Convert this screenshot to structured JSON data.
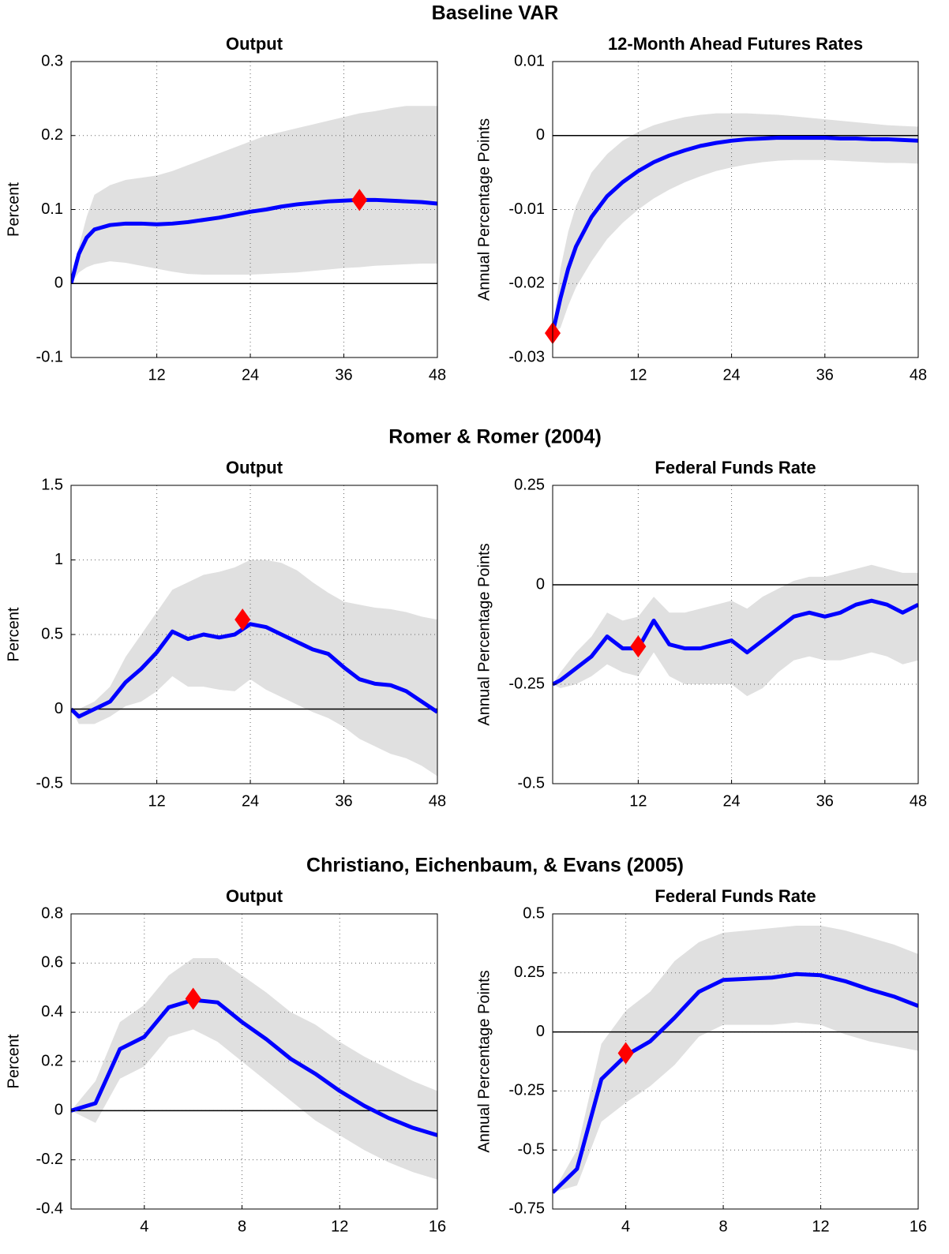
{
  "sections": [
    "Baseline VAR",
    "Romer & Romer (2004)",
    "Christiano, Eichenbaum, & Evans (2005)"
  ],
  "chart_data": [
    {
      "type": "line",
      "title": "Output",
      "ylabel": "Percent",
      "xlim": [
        1,
        48
      ],
      "ylim": [
        -0.1,
        0.3
      ],
      "xticks": [
        12,
        24,
        36,
        48
      ],
      "yticks": [
        0.3,
        0.2,
        0.1,
        0,
        -0.1
      ],
      "grid": true,
      "hline": 0,
      "x": [
        1,
        2,
        3,
        4,
        6,
        8,
        10,
        12,
        14,
        16,
        18,
        20,
        22,
        24,
        26,
        28,
        30,
        32,
        34,
        36,
        38,
        40,
        42,
        44,
        46,
        48
      ],
      "line": {
        "color": "#0000ff",
        "values": [
          0,
          0.04,
          0.062,
          0.073,
          0.079,
          0.081,
          0.081,
          0.08,
          0.081,
          0.083,
          0.086,
          0.089,
          0.093,
          0.097,
          0.1,
          0.104,
          0.107,
          0.109,
          0.111,
          0.112,
          0.113,
          0.113,
          0.112,
          0.111,
          0.11,
          0.108
        ]
      },
      "band": {
        "color": "#e0e0e0",
        "upper": [
          0,
          0.05,
          0.09,
          0.12,
          0.133,
          0.14,
          0.143,
          0.146,
          0.152,
          0.16,
          0.168,
          0.176,
          0.184,
          0.192,
          0.2,
          0.205,
          0.21,
          0.215,
          0.22,
          0.225,
          0.23,
          0.233,
          0.237,
          0.24,
          0.24,
          0.24
        ],
        "lower": [
          0,
          0.015,
          0.022,
          0.026,
          0.03,
          0.028,
          0.024,
          0.02,
          0.016,
          0.013,
          0.012,
          0.012,
          0.012,
          0.012,
          0.013,
          0.014,
          0.015,
          0.017,
          0.019,
          0.021,
          0.022,
          0.024,
          0.025,
          0.026,
          0.027,
          0.027
        ]
      },
      "marker": {
        "color": "#ff0000",
        "x": 38,
        "y": 0.113
      }
    },
    {
      "type": "line",
      "title": "12-Month Ahead Futures Rates",
      "ylabel": "Annual Percentage Points",
      "xlim": [
        1,
        48
      ],
      "ylim": [
        -0.03,
        0.01
      ],
      "xticks": [
        12,
        24,
        36,
        48
      ],
      "yticks": [
        0.01,
        0,
        -0.01,
        -0.02,
        -0.03
      ],
      "grid": true,
      "hline": 0,
      "x": [
        1,
        2,
        3,
        4,
        6,
        8,
        10,
        12,
        14,
        16,
        18,
        20,
        22,
        24,
        26,
        28,
        30,
        32,
        34,
        36,
        38,
        40,
        42,
        44,
        46,
        48
      ],
      "line": {
        "color": "#0000ff",
        "values": [
          -0.0267,
          -0.022,
          -0.018,
          -0.015,
          -0.011,
          -0.0082,
          -0.0063,
          -0.0048,
          -0.0036,
          -0.0027,
          -0.002,
          -0.0014,
          -0.001,
          -0.0007,
          -0.0005,
          -0.0004,
          -0.0003,
          -0.0003,
          -0.0003,
          -0.0003,
          -0.0004,
          -0.0004,
          -0.0005,
          -0.0005,
          -0.0006,
          -0.0007
        ]
      },
      "band": {
        "color": "#e0e0e0",
        "upper": [
          -0.0267,
          -0.018,
          -0.013,
          -0.0095,
          -0.005,
          -0.0025,
          -0.0007,
          0.0005,
          0.0014,
          0.002,
          0.0025,
          0.0028,
          0.003,
          0.003,
          0.003,
          0.0029,
          0.0028,
          0.0026,
          0.0024,
          0.0022,
          0.002,
          0.0018,
          0.0016,
          0.0014,
          0.0013,
          0.0012
        ],
        "lower": [
          -0.0267,
          -0.026,
          -0.023,
          -0.0205,
          -0.017,
          -0.014,
          -0.0118,
          -0.01,
          -0.0085,
          -0.0073,
          -0.0063,
          -0.0055,
          -0.0048,
          -0.0043,
          -0.0039,
          -0.0036,
          -0.0034,
          -0.0033,
          -0.0033,
          -0.0033,
          -0.0034,
          -0.0035,
          -0.0036,
          -0.0037,
          -0.0037,
          -0.0038
        ]
      },
      "marker": {
        "color": "#ff0000",
        "x": 1,
        "y": -0.0267
      }
    },
    {
      "type": "line",
      "title": "Output",
      "ylabel": "Percent",
      "xlim": [
        1,
        48
      ],
      "ylim": [
        -0.5,
        1.5
      ],
      "xticks": [
        12,
        24,
        36,
        48
      ],
      "yticks": [
        1.5,
        1,
        0.5,
        0,
        -0.5
      ],
      "grid": true,
      "hline": 0,
      "x": [
        1,
        2,
        4,
        6,
        8,
        10,
        12,
        14,
        16,
        18,
        20,
        22,
        24,
        26,
        28,
        30,
        32,
        34,
        36,
        38,
        40,
        42,
        44,
        46,
        48
      ],
      "line": {
        "color": "#0000ff",
        "values": [
          0,
          -0.05,
          0,
          0.05,
          0.18,
          0.27,
          0.38,
          0.52,
          0.47,
          0.5,
          0.48,
          0.5,
          0.57,
          0.55,
          0.5,
          0.45,
          0.4,
          0.37,
          0.28,
          0.2,
          0.17,
          0.16,
          0.12,
          0.05,
          -0.02
        ]
      },
      "band": {
        "color": "#e0e0e0",
        "upper": [
          0,
          0,
          0.05,
          0.15,
          0.35,
          0.5,
          0.65,
          0.8,
          0.85,
          0.9,
          0.92,
          0.95,
          1.0,
          1.0,
          0.98,
          0.93,
          0.85,
          0.78,
          0.72,
          0.7,
          0.68,
          0.67,
          0.65,
          0.62,
          0.6
        ],
        "lower": [
          0,
          -0.1,
          -0.1,
          -0.05,
          0.02,
          0.05,
          0.12,
          0.22,
          0.15,
          0.15,
          0.13,
          0.12,
          0.2,
          0.13,
          0.08,
          0.03,
          -0.02,
          -0.06,
          -0.12,
          -0.2,
          -0.25,
          -0.3,
          -0.33,
          -0.38,
          -0.45
        ]
      },
      "marker": {
        "color": "#ff0000",
        "x": 23,
        "y": 0.6
      }
    },
    {
      "type": "line",
      "title": "Federal Funds Rate",
      "ylabel": "Annual Percentage Points",
      "xlim": [
        1,
        48
      ],
      "ylim": [
        -0.5,
        0.25
      ],
      "xticks": [
        12,
        24,
        36,
        48
      ],
      "yticks": [
        0.25,
        0,
        -0.25,
        -0.5
      ],
      "grid": true,
      "hline": 0,
      "x": [
        1,
        2,
        4,
        6,
        8,
        10,
        12,
        14,
        16,
        18,
        20,
        22,
        24,
        26,
        28,
        30,
        32,
        34,
        36,
        38,
        40,
        42,
        44,
        46,
        48
      ],
      "line": {
        "color": "#0000ff",
        "values": [
          -0.25,
          -0.24,
          -0.21,
          -0.18,
          -0.13,
          -0.16,
          -0.16,
          -0.09,
          -0.15,
          -0.16,
          -0.16,
          -0.15,
          -0.14,
          -0.17,
          -0.14,
          -0.11,
          -0.08,
          -0.07,
          -0.08,
          -0.07,
          -0.05,
          -0.04,
          -0.05,
          -0.07,
          -0.05
        ]
      },
      "band": {
        "color": "#e0e0e0",
        "upper": [
          -0.25,
          -0.22,
          -0.17,
          -0.13,
          -0.07,
          -0.09,
          -0.08,
          -0.03,
          -0.07,
          -0.07,
          -0.06,
          -0.05,
          -0.04,
          -0.06,
          -0.03,
          -0.01,
          0.01,
          0.02,
          0.02,
          0.03,
          0.04,
          0.05,
          0.04,
          0.03,
          0.03
        ],
        "lower": [
          -0.25,
          -0.26,
          -0.25,
          -0.23,
          -0.2,
          -0.22,
          -0.23,
          -0.17,
          -0.23,
          -0.25,
          -0.25,
          -0.25,
          -0.25,
          -0.28,
          -0.26,
          -0.22,
          -0.19,
          -0.18,
          -0.19,
          -0.19,
          -0.18,
          -0.17,
          -0.18,
          -0.2,
          -0.19
        ]
      },
      "marker": {
        "color": "#ff0000",
        "x": 12,
        "y": -0.155
      }
    },
    {
      "type": "line",
      "title": "Output",
      "ylabel": "Percent",
      "xlim": [
        1,
        16
      ],
      "ylim": [
        -0.4,
        0.8
      ],
      "xticks": [
        4,
        8,
        12,
        16
      ],
      "yticks": [
        0.8,
        0.6,
        0.4,
        0.2,
        0,
        -0.2,
        -0.4
      ],
      "grid": true,
      "hline": 0,
      "x": [
        1,
        2,
        3,
        4,
        5,
        6,
        7,
        8,
        9,
        10,
        11,
        12,
        13,
        14,
        15,
        16
      ],
      "line": {
        "color": "#0000ff",
        "values": [
          0,
          0.03,
          0.25,
          0.3,
          0.42,
          0.45,
          0.44,
          0.36,
          0.29,
          0.21,
          0.15,
          0.08,
          0.02,
          -0.03,
          -0.07,
          -0.1
        ]
      },
      "band": {
        "color": "#e0e0e0",
        "upper": [
          0,
          0.12,
          0.36,
          0.43,
          0.55,
          0.62,
          0.62,
          0.55,
          0.48,
          0.4,
          0.35,
          0.28,
          0.22,
          0.17,
          0.12,
          0.08
        ],
        "lower": [
          0,
          -0.05,
          0.13,
          0.18,
          0.3,
          0.33,
          0.28,
          0.2,
          0.12,
          0.04,
          -0.04,
          -0.1,
          -0.16,
          -0.21,
          -0.25,
          -0.28
        ]
      },
      "marker": {
        "color": "#ff0000",
        "x": 6,
        "y": 0.455
      }
    },
    {
      "type": "line",
      "title": "Federal Funds Rate",
      "ylabel": "Annual Percentage Points",
      "xlim": [
        1,
        16
      ],
      "ylim": [
        -0.75,
        0.5
      ],
      "xticks": [
        4,
        8,
        12,
        16
      ],
      "yticks": [
        0.5,
        0.25,
        0,
        -0.25,
        -0.5,
        -0.75
      ],
      "grid": true,
      "hline": 0,
      "x": [
        1,
        2,
        3,
        4,
        5,
        6,
        7,
        8,
        9,
        10,
        11,
        12,
        13,
        14,
        15,
        16
      ],
      "line": {
        "color": "#0000ff",
        "values": [
          -0.68,
          -0.58,
          -0.2,
          -0.1,
          -0.04,
          0.06,
          0.17,
          0.22,
          0.225,
          0.23,
          0.245,
          0.24,
          0.215,
          0.18,
          0.15,
          0.11
        ]
      },
      "band": {
        "color": "#e0e0e0",
        "upper": [
          -0.68,
          -0.5,
          -0.05,
          0.09,
          0.17,
          0.3,
          0.38,
          0.42,
          0.43,
          0.44,
          0.45,
          0.45,
          0.43,
          0.4,
          0.37,
          0.33
        ],
        "lower": [
          -0.68,
          -0.65,
          -0.38,
          -0.3,
          -0.23,
          -0.14,
          -0.02,
          0.03,
          0.03,
          0.03,
          0.04,
          0.03,
          -0.01,
          -0.04,
          -0.06,
          -0.08
        ]
      },
      "marker": {
        "color": "#ff0000",
        "x": 4,
        "y": -0.09
      }
    }
  ]
}
